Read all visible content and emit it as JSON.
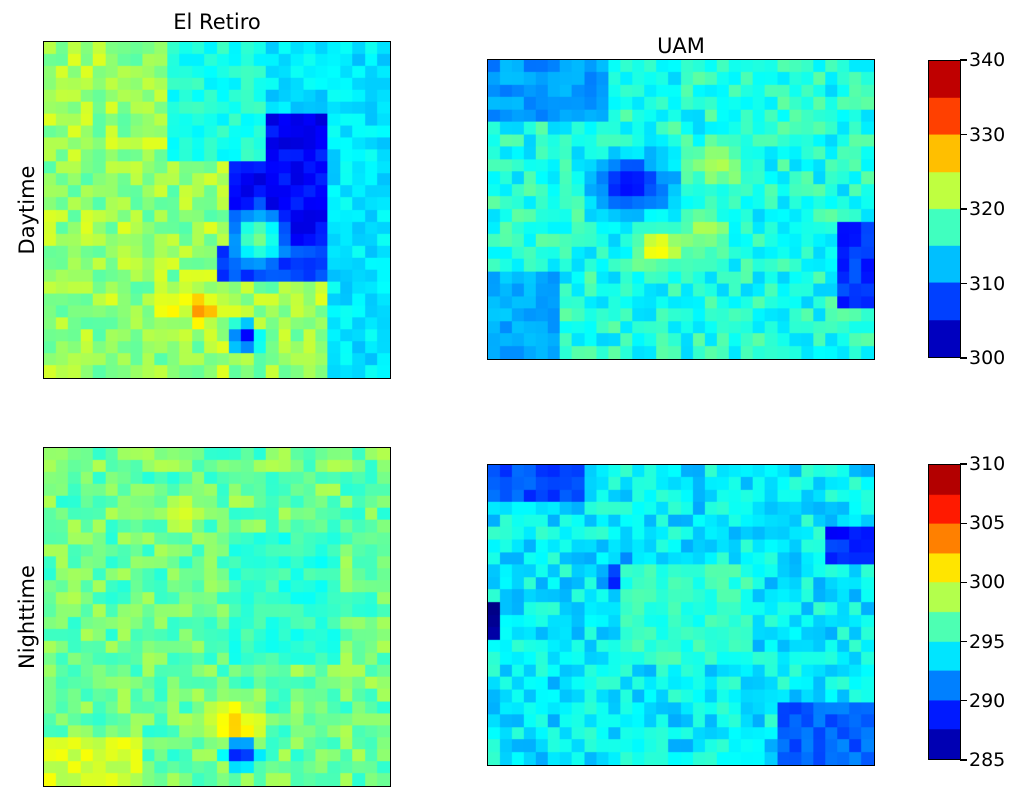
{
  "figure": {
    "col_titles": [
      "El Retiro",
      "UAM"
    ],
    "row_labels": [
      "Daytime",
      "Nighttime"
    ]
  },
  "chart_data": [
    {
      "type": "heatmap",
      "title": "El Retiro",
      "row": "Daytime",
      "colormap": "jet",
      "vmin": 300,
      "vmax": 340,
      "grid": [
        28,
        28
      ],
      "background_level": 321,
      "features": [
        {
          "kind": "rect",
          "x": [
            0.55,
            0.9
          ],
          "y": [
            0.22,
            0.67
          ],
          "level": 305
        },
        {
          "kind": "rect",
          "x": [
            0.5,
            0.9
          ],
          "y": [
            0.6,
            0.72
          ],
          "level": 308
        },
        {
          "kind": "spot",
          "x": 0.62,
          "y": 0.58,
          "r": 0.05,
          "level": 320
        },
        {
          "kind": "spot",
          "x": 0.46,
          "y": 0.8,
          "r": 0.03,
          "level": 330
        },
        {
          "kind": "spot",
          "x": 0.36,
          "y": 0.79,
          "r": 0.03,
          "level": 326
        },
        {
          "kind": "spot",
          "x": 0.58,
          "y": 0.88,
          "r": 0.03,
          "level": 304
        },
        {
          "kind": "rect",
          "x": [
            0.35,
            0.65
          ],
          "y": [
            0.0,
            0.35
          ],
          "level": 316
        },
        {
          "kind": "rect",
          "x": [
            0.65,
            1.0
          ],
          "y": [
            0.0,
            0.2
          ],
          "level": 314
        },
        {
          "kind": "rect",
          "x": [
            0.82,
            1.0
          ],
          "y": [
            0.0,
            1.0
          ],
          "level": 314
        }
      ]
    },
    {
      "type": "heatmap",
      "title": "UAM",
      "row": "Daytime",
      "colormap": "jet",
      "vmin": 300,
      "vmax": 340,
      "grid": [
        24,
        32
      ],
      "background_level": 316,
      "features": [
        {
          "kind": "spot",
          "x": 0.37,
          "y": 0.42,
          "r": 0.07,
          "level": 305
        },
        {
          "kind": "spot",
          "x": 0.44,
          "y": 0.63,
          "r": 0.04,
          "level": 326
        },
        {
          "kind": "spot",
          "x": 0.6,
          "y": 0.35,
          "r": 0.05,
          "level": 322
        },
        {
          "kind": "spot",
          "x": 0.56,
          "y": 0.57,
          "r": 0.04,
          "level": 322
        },
        {
          "kind": "rect",
          "x": [
            0.9,
            1.0
          ],
          "y": [
            0.55,
            0.85
          ],
          "level": 307
        },
        {
          "kind": "rect",
          "x": [
            0.0,
            0.3
          ],
          "y": [
            0.0,
            0.2
          ],
          "level": 311
        },
        {
          "kind": "rect",
          "x": [
            0.0,
            0.2
          ],
          "y": [
            0.7,
            1.0
          ],
          "level": 312
        }
      ]
    },
    {
      "type": "heatmap",
      "title": "El Retiro",
      "row": "Nighttime",
      "colormap": "jet",
      "vmin": 285,
      "vmax": 310,
      "grid": [
        28,
        28
      ],
      "background_level": 297,
      "features": [
        {
          "kind": "spot",
          "x": 0.55,
          "y": 0.82,
          "r": 0.05,
          "level": 302
        },
        {
          "kind": "spot",
          "x": 0.57,
          "y": 0.9,
          "r": 0.03,
          "level": 287
        },
        {
          "kind": "rect",
          "x": [
            0.0,
            0.3
          ],
          "y": [
            0.85,
            1.0
          ],
          "level": 299.5
        },
        {
          "kind": "spot",
          "x": 0.4,
          "y": 0.2,
          "r": 0.03,
          "level": 300
        },
        {
          "kind": "rect",
          "x": [
            0.55,
            0.85
          ],
          "y": [
            0.25,
            0.65
          ],
          "level": 295.5
        }
      ]
    },
    {
      "type": "heatmap",
      "title": "UAM",
      "row": "Nighttime",
      "colormap": "jet",
      "vmin": 285,
      "vmax": 310,
      "grid": [
        24,
        32
      ],
      "background_level": 294,
      "features": [
        {
          "kind": "spot",
          "x": 0.36,
          "y": 0.38,
          "r": 0.04,
          "level": 287
        },
        {
          "kind": "rect",
          "x": [
            0.0,
            0.03
          ],
          "y": [
            0.45,
            0.6
          ],
          "level": 286
        },
        {
          "kind": "rect",
          "x": [
            0.88,
            1.0
          ],
          "y": [
            0.2,
            0.35
          ],
          "level": 289
        },
        {
          "kind": "rect",
          "x": [
            0.0,
            0.25
          ],
          "y": [
            0.0,
            0.12
          ],
          "level": 290
        },
        {
          "kind": "rect",
          "x": [
            0.75,
            1.0
          ],
          "y": [
            0.8,
            1.0
          ],
          "level": 290.5
        },
        {
          "kind": "rect",
          "x": [
            0.35,
            0.7
          ],
          "y": [
            0.35,
            0.65
          ],
          "level": 295.5
        }
      ]
    }
  ],
  "colorbars": [
    {
      "vmin": 300,
      "vmax": 340,
      "ticks": [
        "300",
        "310",
        "320",
        "330",
        "340"
      ],
      "steps": 8
    },
    {
      "vmin": 285,
      "vmax": 310,
      "ticks": [
        "285",
        "290",
        "295",
        "300",
        "305",
        "310"
      ],
      "steps": 10
    }
  ]
}
